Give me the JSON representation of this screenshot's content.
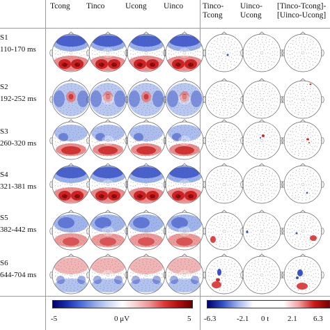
{
  "columns": [
    {
      "lines": [
        "Tcong"
      ]
    },
    {
      "lines": [
        "Tinco"
      ]
    },
    {
      "lines": [
        "Ucong"
      ]
    },
    {
      "lines": [
        "Uinco"
      ]
    },
    {
      "lines": [
        "Tinco-",
        "Tcong"
      ]
    },
    {
      "lines": [
        "Uinco-",
        "Ucong"
      ]
    },
    {
      "lines": [
        "[Tinco-Tcong]-",
        "[Uinco-Ucong]"
      ]
    }
  ],
  "rows": [
    {
      "label": "S1",
      "time": "110-170 ms"
    },
    {
      "label": "S2",
      "time": "192-252 ms"
    },
    {
      "label": "S3",
      "time": "260-320 ms"
    },
    {
      "label": "S4",
      "time": "321-381 ms"
    },
    {
      "label": "S5",
      "time": "382-442 ms"
    },
    {
      "label": "S6",
      "time": "644-704 ms"
    }
  ],
  "colorbar_voltage": {
    "ticks": [
      "-5",
      "0 μV",
      "5"
    ],
    "colors": [
      "#000070",
      "#1a2fb0",
      "#4a6ad8",
      "#90a8e6",
      "#cdd8f3",
      "#ffffff",
      "#f6cccc",
      "#ec8f8f",
      "#dd3838",
      "#b00f0f",
      "#6a0000"
    ]
  },
  "colorbar_t": {
    "ticks": [
      "-6.3",
      "-2.1",
      "0 t",
      "2.1",
      "6.3"
    ],
    "colors": [
      "#000070",
      "#3050c8",
      "#9fb2ec",
      "#ffffff",
      "#ffffff",
      "#ffffff",
      "#f3a0a0",
      "#cc1818",
      "#7a0000"
    ]
  }
}
